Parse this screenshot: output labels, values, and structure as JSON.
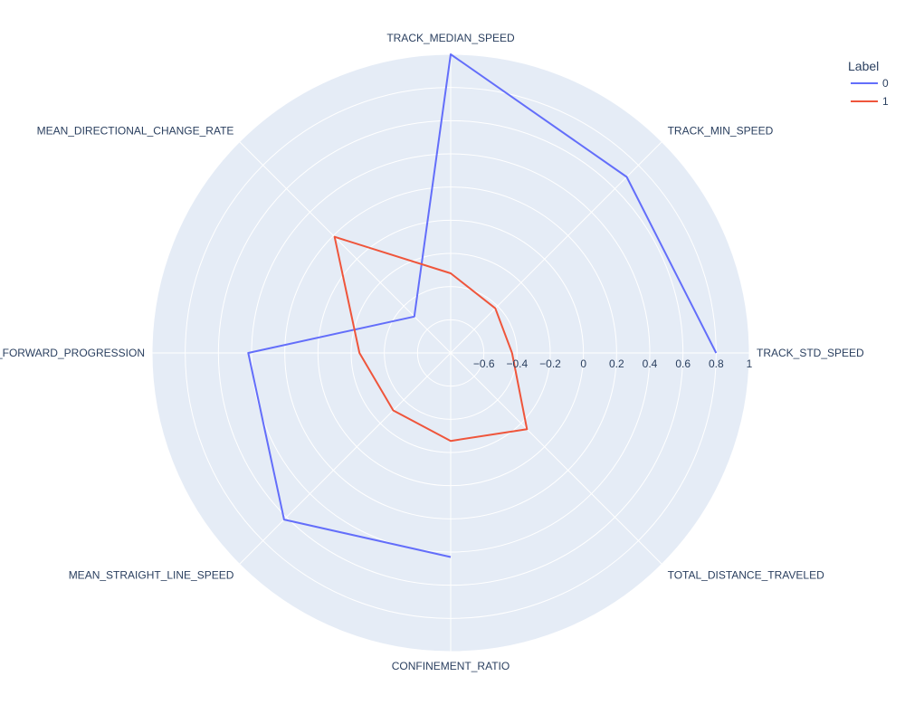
{
  "chart_data": {
    "type": "radar",
    "axes": [
      "TRACK_STD_SPEED",
      "TRACK_MIN_SPEED",
      "TRACK_MEDIAN_SPEED",
      "MEAN_DIRECTIONAL_CHANGE_RATE",
      "_FORWARD_PROGRESSION",
      "MEAN_STRAIGHT_LINE_SPEED",
      "CONFINEMENT_RATIO",
      "TOTAL_DISTANCE_TRAVELED"
    ],
    "axis_label_overrides": {},
    "radial_range": [
      -0.8,
      1.0
    ],
    "radial_ticks": [
      "−0.6",
      "−0.4",
      "−0.2",
      "0",
      "0.2",
      "0.4",
      "0.6",
      "0.8",
      "1"
    ],
    "radial_tick_values": [
      -0.6,
      -0.4,
      -0.2,
      0,
      0.2,
      0.4,
      0.6,
      0.8,
      1.0
    ],
    "grid": true,
    "legend": {
      "title": "Label",
      "placement": "top-right",
      "entries": [
        "0",
        "1"
      ]
    },
    "series": [
      {
        "name": "0",
        "color": "#636efa",
        "values": {
          "TRACK_STD_SPEED": 0.8,
          "TRACK_MIN_SPEED": 0.7,
          "TRACK_MEDIAN_SPEED": 1.0,
          "MEAN_DIRECTIONAL_CHANGE_RATE": -0.49,
          "_FORWARD_PROGRESSION": 0.42,
          "MEAN_STRAIGHT_LINE_SPEED": 0.62,
          "CONFINEMENT_RATIO": 0.43
        }
      },
      {
        "name": "1",
        "color": "#ef553b",
        "values": {
          "TRACK_STD_SPEED": -0.43,
          "TRACK_MIN_SPEED": -0.42,
          "TRACK_MEDIAN_SPEED": -0.32,
          "MEAN_DIRECTIONAL_CHANGE_RATE": 0.19,
          "_FORWARD_PROGRESSION": -0.25,
          "MEAN_STRAIGHT_LINE_SPEED": -0.31,
          "CONFINEMENT_RATIO": -0.27,
          "TOTAL_DISTANCE_TRAVELED": -0.15
        }
      }
    ]
  }
}
